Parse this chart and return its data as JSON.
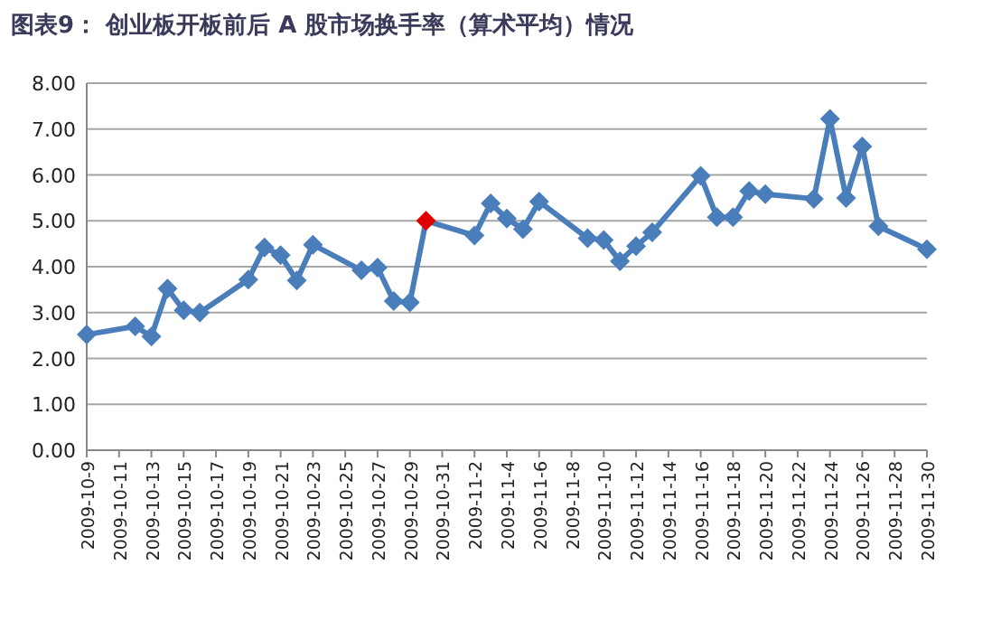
{
  "chart_data": {
    "type": "line",
    "title": "图表9：  创业板开板前后 A 股市场换手率（算术平均）情况",
    "x": [
      "2009-10-09",
      "2009-10-12",
      "2009-10-13",
      "2009-10-14",
      "2009-10-15",
      "2009-10-16",
      "2009-10-19",
      "2009-10-20",
      "2009-10-21",
      "2009-10-22",
      "2009-10-23",
      "2009-10-26",
      "2009-10-27",
      "2009-10-28",
      "2009-10-29",
      "2009-10-30",
      "2009-11-02",
      "2009-11-03",
      "2009-11-04",
      "2009-11-05",
      "2009-11-06",
      "2009-11-09",
      "2009-11-10",
      "2009-11-11",
      "2009-11-12",
      "2009-11-13",
      "2009-11-16",
      "2009-11-17",
      "2009-11-18",
      "2009-11-19",
      "2009-11-20",
      "2009-11-23",
      "2009-11-24",
      "2009-11-25",
      "2009-11-26",
      "2009-11-27",
      "2009-11-30"
    ],
    "series": [
      {
        "color": "#4a7ebb",
        "colors": [
          "#4a7ebb",
          "#4a7ebb",
          "#4a7ebb",
          "#4a7ebb",
          "#4a7ebb",
          "#4a7ebb",
          "#4a7ebb",
          "#4a7ebb",
          "#4a7ebb",
          "#4a7ebb",
          "#4a7ebb",
          "#4a7ebb",
          "#4a7ebb",
          "#4a7ebb",
          "#4a7ebb",
          "#e00000",
          "#4a7ebb",
          "#4a7ebb",
          "#4a7ebb",
          "#4a7ebb",
          "#4a7ebb",
          "#4a7ebb",
          "#4a7ebb",
          "#4a7ebb",
          "#4a7ebb",
          "#4a7ebb",
          "#4a7ebb",
          "#4a7ebb",
          "#4a7ebb",
          "#4a7ebb",
          "#4a7ebb",
          "#4a7ebb",
          "#4a7ebb",
          "#4a7ebb",
          "#4a7ebb",
          "#4a7ebb",
          "#4a7ebb"
        ],
        "values": [
          2.52,
          2.7,
          2.48,
          3.52,
          3.05,
          3.0,
          3.72,
          4.42,
          4.25,
          3.7,
          4.48,
          3.92,
          3.98,
          3.25,
          3.22,
          5.0,
          4.68,
          5.38,
          5.05,
          4.82,
          5.42,
          4.62,
          4.58,
          4.12,
          4.45,
          4.75,
          5.98,
          5.08,
          5.08,
          5.65,
          5.58,
          5.48,
          7.22,
          5.5,
          6.62,
          4.88,
          4.38
        ]
      }
    ],
    "xlim": [
      "2009-10-09",
      "2009-11-30"
    ],
    "xticks": [
      {
        "value": "2009-10-09",
        "label": "2009-10-9"
      },
      "2009-10-11",
      "2009-10-13",
      "2009-10-15",
      "2009-10-17",
      "2009-10-19",
      "2009-10-21",
      "2009-10-23",
      "2009-10-25",
      "2009-10-27",
      "2009-10-29",
      "2009-10-31",
      {
        "value": "2009-11-02",
        "label": "2009-11-2"
      },
      {
        "value": "2009-11-04",
        "label": "2009-11-4"
      },
      {
        "value": "2009-11-06",
        "label": "2009-11-6"
      },
      {
        "value": "2009-11-08",
        "label": "2009-11-8"
      },
      "2009-11-10",
      "2009-11-12",
      "2009-11-14",
      "2009-11-16",
      "2009-11-18",
      "2009-11-20",
      "2009-11-22",
      "2009-11-24",
      "2009-11-26",
      "2009-11-28",
      "2009-11-30"
    ],
    "ylim": [
      0,
      8
    ],
    "yticks": [
      {
        "value": 0,
        "label": "0.00"
      },
      {
        "value": 1,
        "label": "1.00"
      },
      {
        "value": 2,
        "label": "2.00"
      },
      {
        "value": 3,
        "label": "3.00"
      },
      {
        "value": 4,
        "label": "4.00"
      },
      {
        "value": 5,
        "label": "5.00"
      },
      {
        "value": 6,
        "label": "6.00"
      },
      {
        "value": 7,
        "label": "7.00"
      },
      {
        "value": 8,
        "label": "8.00"
      }
    ],
    "grid": "y",
    "marker": "diamond",
    "line_style": "solid"
  }
}
